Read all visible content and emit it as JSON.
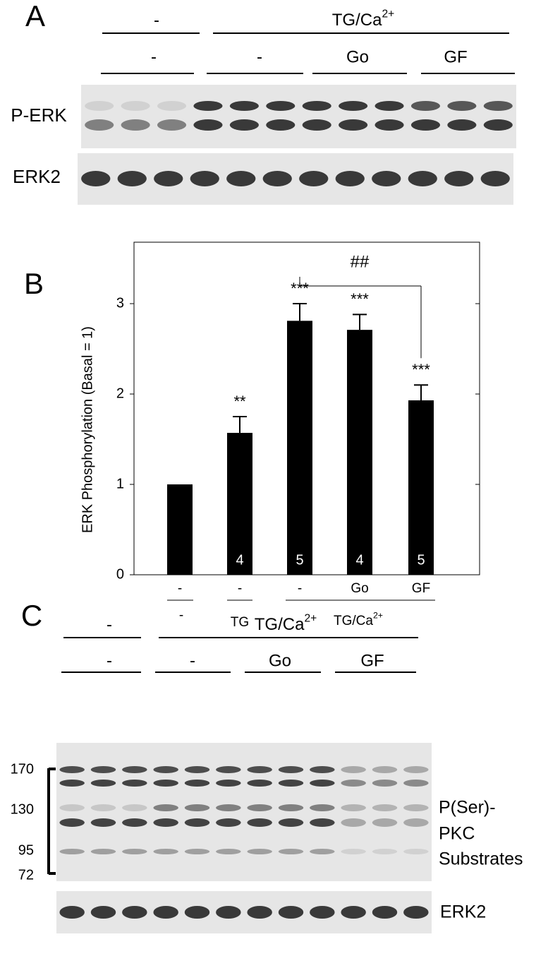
{
  "panel_a": {
    "label": "A",
    "header_top": [
      "-",
      {
        "text": "TG/Ca",
        "sup": "2+"
      }
    ],
    "header_bottom": [
      "-",
      "-",
      "Go",
      "GF"
    ],
    "blots": [
      "P-ERK",
      "ERK2"
    ]
  },
  "chart_data": {
    "type": "bar",
    "panel_label": "B",
    "y_label": "ERK Phosphorylation (Basal = 1)",
    "categories": [
      "-",
      "-",
      "-",
      "Go",
      "GF"
    ],
    "groups": [
      "-",
      "TG",
      {
        "text": "TG/Ca",
        "sup": "2+"
      }
    ],
    "values": [
      1,
      1.57,
      2.81,
      2.71,
      1.93
    ],
    "errors": [
      null,
      0.18,
      0.19,
      0.17,
      0.17
    ],
    "significance": [
      null,
      "**",
      "***",
      "***",
      "***"
    ],
    "n_labels": [
      null,
      "4",
      "5",
      "4",
      "5"
    ],
    "bracket_label": "##",
    "color": "#000000",
    "ylim": [
      0,
      3.68
    ],
    "yticks": [
      0,
      1,
      2,
      3
    ]
  },
  "panel_c": {
    "label": "C",
    "header_top": [
      "-",
      {
        "text": "TG/Ca",
        "sup": "2+"
      }
    ],
    "header_bottom": [
      "-",
      "-",
      "Go",
      "GF"
    ],
    "mw_markers": [
      "170",
      "130",
      "95",
      "72"
    ],
    "blot_label": [
      "P(Ser)-",
      "PKC",
      "Substrates"
    ],
    "loading_label": "ERK2"
  }
}
